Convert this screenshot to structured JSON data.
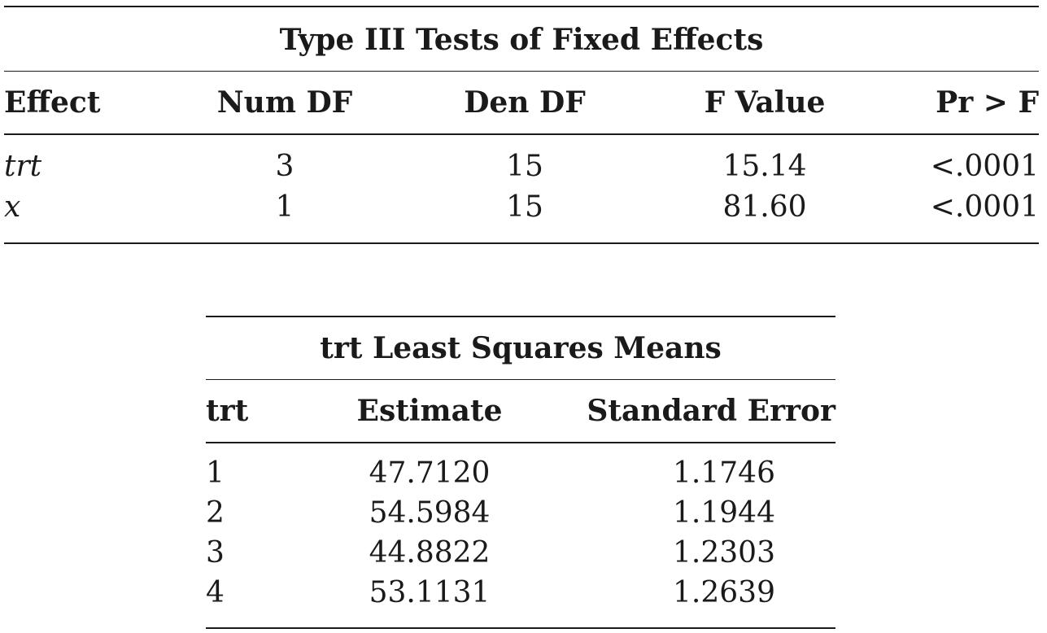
{
  "fixed_effects": {
    "title": "Type III Tests of Fixed Effects",
    "headers": {
      "effect": "Effect",
      "num_df": "Num DF",
      "den_df": "Den DF",
      "f_value": "F Value",
      "pr_f": "Pr > F"
    },
    "rows": [
      {
        "effect": "trt",
        "num_df": "3",
        "den_df": "15",
        "f_value": "15.14",
        "pr_f": "<.0001"
      },
      {
        "effect": "x",
        "num_df": "1",
        "den_df": "15",
        "f_value": "81.60",
        "pr_f": "<.0001"
      }
    ]
  },
  "lsmeans": {
    "title": "trt Least Squares Means",
    "headers": {
      "trt": "trt",
      "estimate": "Estimate",
      "std_error": "Standard Error"
    },
    "rows": [
      {
        "trt": "1",
        "estimate": "47.7120",
        "std_error": "1.1746"
      },
      {
        "trt": "2",
        "estimate": "54.5984",
        "std_error": "1.1944"
      },
      {
        "trt": "3",
        "estimate": "44.8822",
        "std_error": "1.2303"
      },
      {
        "trt": "4",
        "estimate": "53.1131",
        "std_error": "1.2639"
      }
    ]
  }
}
